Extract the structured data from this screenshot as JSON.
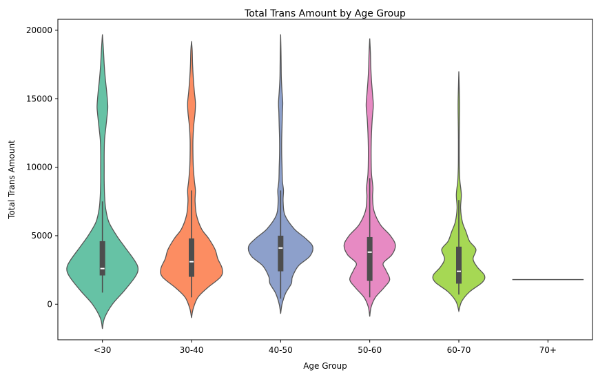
{
  "chart_data": {
    "type": "violin",
    "title": "Total Trans Amount by Age Group",
    "xlabel": "Age Group",
    "ylabel": "Total Trans Amount",
    "ylim": [
      -2600,
      20800
    ],
    "yticks": [
      0,
      5000,
      10000,
      15000,
      20000
    ],
    "grid": false,
    "legend": "none",
    "categories": [
      "<30",
      "30-40",
      "40-50",
      "50-60",
      "60-70",
      "70+"
    ],
    "colors": [
      "#66c2a5",
      "#fc8d62",
      "#8da0cb",
      "#e78ac3",
      "#a6d854",
      "#ffd92f"
    ],
    "outline_color": "#555555",
    "violins": [
      {
        "category": "<30",
        "min": -1800,
        "max": 19700,
        "whisker": [
          850,
          7500
        ],
        "q1": 2100,
        "median": 2600,
        "q3": 4600,
        "density": [
          [
            -1800,
            0
          ],
          [
            -1000,
            0.06
          ],
          [
            0,
            0.28
          ],
          [
            1000,
            0.62
          ],
          [
            2000,
            0.92
          ],
          [
            2600,
            1.0
          ],
          [
            3200,
            0.9
          ],
          [
            4200,
            0.62
          ],
          [
            5000,
            0.4
          ],
          [
            6000,
            0.18
          ],
          [
            7000,
            0.09
          ],
          [
            8000,
            0.06
          ],
          [
            9000,
            0.05
          ],
          [
            10000,
            0.05
          ],
          [
            11000,
            0.05
          ],
          [
            12000,
            0.06
          ],
          [
            13000,
            0.1
          ],
          [
            14000,
            0.14
          ],
          [
            14500,
            0.15
          ],
          [
            15500,
            0.12
          ],
          [
            16500,
            0.08
          ],
          [
            17500,
            0.05
          ],
          [
            18500,
            0.03
          ],
          [
            19700,
            0
          ]
        ]
      },
      {
        "category": "30-40",
        "min": -1000,
        "max": 19200,
        "whisker": [
          500,
          8300
        ],
        "q1": 2000,
        "median": 3100,
        "q3": 4800,
        "density": [
          [
            -1000,
            0
          ],
          [
            -300,
            0.05
          ],
          [
            500,
            0.18
          ],
          [
            1200,
            0.45
          ],
          [
            2000,
            0.82
          ],
          [
            2600,
            0.86
          ],
          [
            3300,
            0.74
          ],
          [
            4000,
            0.66
          ],
          [
            4800,
            0.48
          ],
          [
            5500,
            0.28
          ],
          [
            6500,
            0.14
          ],
          [
            7500,
            0.1
          ],
          [
            8300,
            0.11
          ],
          [
            9000,
            0.08
          ],
          [
            10000,
            0.05
          ],
          [
            11000,
            0.04
          ],
          [
            12000,
            0.04
          ],
          [
            13000,
            0.06
          ],
          [
            14000,
            0.1
          ],
          [
            14700,
            0.11
          ],
          [
            15500,
            0.08
          ],
          [
            16500,
            0.05
          ],
          [
            17500,
            0.03
          ],
          [
            18500,
            0.02
          ],
          [
            19200,
            0
          ]
        ]
      },
      {
        "category": "40-50",
        "min": -700,
        "max": 19700,
        "whisker": [
          400,
          8300
        ],
        "q1": 2400,
        "median": 4100,
        "q3": 5000,
        "density": [
          [
            -700,
            0
          ],
          [
            0,
            0.04
          ],
          [
            800,
            0.14
          ],
          [
            1500,
            0.3
          ],
          [
            2000,
            0.33
          ],
          [
            2800,
            0.5
          ],
          [
            3500,
            0.82
          ],
          [
            4200,
            0.9
          ],
          [
            4800,
            0.7
          ],
          [
            5500,
            0.38
          ],
          [
            6500,
            0.12
          ],
          [
            7500,
            0.07
          ],
          [
            8300,
            0.08
          ],
          [
            9000,
            0.05
          ],
          [
            10000,
            0.04
          ],
          [
            11000,
            0.03
          ],
          [
            12000,
            0.03
          ],
          [
            13000,
            0.04
          ],
          [
            14000,
            0.05
          ],
          [
            14700,
            0.06
          ],
          [
            15500,
            0.04
          ],
          [
            16500,
            0.02
          ],
          [
            17500,
            0.015
          ],
          [
            18500,
            0.01
          ],
          [
            19700,
            0
          ]
        ]
      },
      {
        "category": "50-60",
        "min": -900,
        "max": 19400,
        "whisker": [
          500,
          9200
        ],
        "q1": 1700,
        "median": 3800,
        "q3": 4900,
        "density": [
          [
            -900,
            0
          ],
          [
            -200,
            0.04
          ],
          [
            500,
            0.16
          ],
          [
            1200,
            0.4
          ],
          [
            1800,
            0.56
          ],
          [
            2500,
            0.45
          ],
          [
            3000,
            0.38
          ],
          [
            3600,
            0.62
          ],
          [
            4300,
            0.72
          ],
          [
            5000,
            0.58
          ],
          [
            5800,
            0.3
          ],
          [
            6800,
            0.12
          ],
          [
            7800,
            0.08
          ],
          [
            8500,
            0.09
          ],
          [
            9500,
            0.05
          ],
          [
            10500,
            0.04
          ],
          [
            11500,
            0.04
          ],
          [
            12500,
            0.05
          ],
          [
            13500,
            0.07
          ],
          [
            14500,
            0.1
          ],
          [
            15300,
            0.08
          ],
          [
            16300,
            0.05
          ],
          [
            17300,
            0.03
          ],
          [
            18300,
            0.02
          ],
          [
            19400,
            0
          ]
        ]
      },
      {
        "category": "60-70",
        "min": -500,
        "max": 17000,
        "whisker": [
          700,
          7600
        ],
        "q1": 1500,
        "median": 2400,
        "q3": 4200,
        "density": [
          [
            -500,
            0
          ],
          [
            200,
            0.08
          ],
          [
            900,
            0.3
          ],
          [
            1600,
            0.66
          ],
          [
            2100,
            0.72
          ],
          [
            2700,
            0.52
          ],
          [
            3300,
            0.4
          ],
          [
            4000,
            0.48
          ],
          [
            4600,
            0.3
          ],
          [
            5300,
            0.2
          ],
          [
            6000,
            0.1
          ],
          [
            7000,
            0.05
          ],
          [
            8000,
            0.07
          ],
          [
            9000,
            0.03
          ],
          [
            10000,
            0.015
          ],
          [
            11000,
            0.012
          ],
          [
            12000,
            0.012
          ],
          [
            13000,
            0.015
          ],
          [
            14000,
            0.02
          ],
          [
            14800,
            0.02
          ],
          [
            15800,
            0.012
          ],
          [
            17000,
            0
          ]
        ]
      },
      {
        "category": "70+",
        "single_value": 1800
      }
    ]
  }
}
